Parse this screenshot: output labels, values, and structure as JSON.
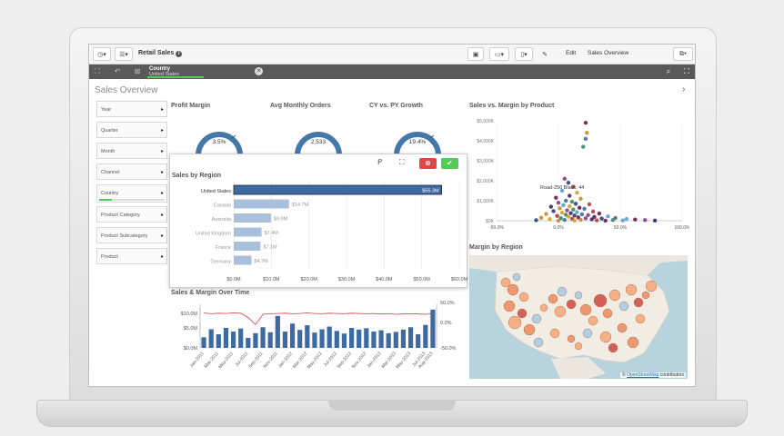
{
  "toolbar": {
    "app_title": "Retail Sales",
    "edit_label": "Edit",
    "sheet_label": "Sales Overview"
  },
  "selection": {
    "field": "Country",
    "value": "United States"
  },
  "sheet": {
    "title": "Sales Overview"
  },
  "filters": [
    {
      "label": "Year"
    },
    {
      "label": "Quarter"
    },
    {
      "label": "Month"
    },
    {
      "label": "Channel"
    },
    {
      "label": "Country",
      "selected_fraction": 0.2
    },
    {
      "label": "Product Category"
    },
    {
      "label": "Product Subcategory"
    },
    {
      "label": "Product"
    }
  ],
  "kpis": [
    {
      "title": "Profit Margin",
      "value": "3.5%"
    },
    {
      "title": "Avg Monthly Orders",
      "value": "2,533"
    },
    {
      "title": "CY vs. PY Growth",
      "value": "19.4%"
    }
  ],
  "colors": {
    "accent": "#4477aa",
    "bar": "#a9bfdc",
    "selected_bar": "#3d6aa3",
    "green": "#52cc52",
    "red": "#e04646",
    "line": "#c9404a"
  },
  "sales_by_region": {
    "title": "Sales by Region",
    "chart_data": {
      "type": "bar",
      "orientation": "horizontal",
      "categories": [
        "United States",
        "Canada",
        "Australia",
        "United Kingdom",
        "France",
        "Germany"
      ],
      "values": [
        55.3,
        14.7,
        9.9,
        7.4,
        7.1,
        4.7
      ],
      "labels": [
        "$55.3M",
        "$14.7M",
        "$9.9M",
        "$7.4M",
        "$7.1M",
        "$4.7M"
      ],
      "ticks": [
        "$0.0M",
        "$10.0M",
        "$20.0M",
        "$30.0M",
        "$40.0M",
        "$50.0M",
        "$60.0M"
      ],
      "xlim": [
        0,
        60
      ],
      "selected": "United States"
    }
  },
  "sales_margin_time": {
    "title": "Sales & Margin Over Time",
    "chart_data": {
      "type": "bar",
      "categories": [
        "Jan-2011",
        "Feb-2011",
        "Mar-2011",
        "Apr-2011",
        "May-2011",
        "Jun-2011",
        "Jul-2011",
        "Aug-2011",
        "Sep-2011",
        "Oct-2011",
        "Nov-2011",
        "Dec-2011",
        "Jan-2012",
        "Feb-2012",
        "Mar-2012",
        "Apr-2012",
        "May-2012",
        "Jun-2012",
        "Jul-2012",
        "Aug-2012",
        "Sep-2012",
        "Oct-2012",
        "Nov-2012",
        "Dec-2012",
        "Jan-2013",
        "Feb-2013",
        "Mar-2013",
        "Apr-2013",
        "May-2013",
        "Jun-2013",
        "Jul-2013",
        "Aug-2013"
      ],
      "tick_labels": [
        "Jan-2011",
        "Mar-2011",
        "May-2011",
        "Jul-2011",
        "Sep-2011",
        "Nov-2011",
        "Jan-2012",
        "Mar-2012",
        "May-2012",
        "Jul-2012",
        "Sep-2012",
        "Nov-2012",
        "Jan-2013",
        "Mar-2013",
        "May-2013",
        "Jul-2013",
        "Aug-2013"
      ],
      "series": [
        {
          "values": [
            3.2,
            5.6,
            4.1,
            6.0,
            4.9,
            5.8,
            3.0,
            4.4,
            6.2,
            4.7,
            9.6,
            4.9,
            7.3,
            5.4,
            6.8,
            4.6,
            5.6,
            6.4,
            5.1,
            4.3,
            6.0,
            5.5,
            5.9,
            4.9,
            5.3,
            4.4,
            4.8,
            5.5,
            6.2,
            4.1,
            6.9,
            11.5
          ]
        },
        {
          "values": [
            1.5,
            1.2,
            1.4,
            1.3,
            1.5,
            1.4,
            -0.2,
            -2.8,
            1.0,
            1.2,
            1.3,
            1.4,
            1.2,
            1.3,
            1.5,
            1.3,
            1.2,
            1.4,
            1.3,
            1.2,
            1.4,
            1.3,
            1.2,
            1.3,
            1.1,
            1.2,
            1.0,
            1.1,
            1.2,
            1.1,
            1.0,
            1.2
          ]
        }
      ],
      "y_ticks": [
        "$10.0M",
        "$5.0M",
        "$0.0M"
      ],
      "y2_ticks": [
        "50.0%",
        "0.0%",
        "-50.0%"
      ],
      "ylim": [
        0,
        12
      ]
    }
  },
  "sales_vs_margin": {
    "title": "Sales vs. Margin by Product",
    "chart_data": {
      "type": "scatter",
      "y_ticks": [
        "$5,000K",
        "$4,000K",
        "$3,000K",
        "$2,000K",
        "$1,000K",
        "$0K"
      ],
      "x_ticks": [
        "-50.0%",
        "0.0%",
        "50.0%",
        "100.0%"
      ],
      "xlim": [
        -50,
        100
      ],
      "ylim": [
        0,
        5000
      ],
      "annotation": "Road-250 Black, 44",
      "points": [
        {
          "x": 22,
          "y": 4900
        },
        {
          "x": 23,
          "y": 4400
        },
        {
          "x": 22,
          "y": 4100
        },
        {
          "x": 20,
          "y": 3700
        },
        {
          "x": 5,
          "y": 2100
        },
        {
          "x": 8,
          "y": 1900
        },
        {
          "x": 12,
          "y": 1700
        },
        {
          "x": 3,
          "y": 1500
        },
        {
          "x": 15,
          "y": 1400
        },
        {
          "x": 9,
          "y": 1250
        },
        {
          "x": -2,
          "y": 1150
        },
        {
          "x": 18,
          "y": 1100
        },
        {
          "x": 6,
          "y": 1000
        },
        {
          "x": 11,
          "y": 950
        },
        {
          "x": 0,
          "y": 900
        },
        {
          "x": 14,
          "y": 850
        },
        {
          "x": 25,
          "y": 820
        },
        {
          "x": 4,
          "y": 780
        },
        {
          "x": 9,
          "y": 720
        },
        {
          "x": -6,
          "y": 700
        },
        {
          "x": 17,
          "y": 650
        },
        {
          "x": 1,
          "y": 620
        },
        {
          "x": 21,
          "y": 600
        },
        {
          "x": 12,
          "y": 560
        },
        {
          "x": 7,
          "y": 520
        },
        {
          "x": -4,
          "y": 480
        },
        {
          "x": 28,
          "y": 460
        },
        {
          "x": 15,
          "y": 430
        },
        {
          "x": 3,
          "y": 400
        },
        {
          "x": 10,
          "y": 380
        },
        {
          "x": 33,
          "y": 360
        },
        {
          "x": -10,
          "y": 340
        },
        {
          "x": 19,
          "y": 320
        },
        {
          "x": 6,
          "y": 300
        },
        {
          "x": 24,
          "y": 280
        },
        {
          "x": 13,
          "y": 260
        },
        {
          "x": -1,
          "y": 240
        },
        {
          "x": 40,
          "y": 220
        },
        {
          "x": 8,
          "y": 200
        },
        {
          "x": 29,
          "y": 190
        },
        {
          "x": 16,
          "y": 170
        },
        {
          "x": -14,
          "y": 150
        },
        {
          "x": 46,
          "y": 140
        },
        {
          "x": 2,
          "y": 130
        },
        {
          "x": 22,
          "y": 120
        },
        {
          "x": 35,
          "y": 110
        },
        {
          "x": 11,
          "y": 100
        },
        {
          "x": 55,
          "y": 90
        },
        {
          "x": -7,
          "y": 80
        },
        {
          "x": 27,
          "y": 70
        },
        {
          "x": 62,
          "y": 60
        },
        {
          "x": 18,
          "y": 50
        },
        {
          "x": 5,
          "y": 40
        },
        {
          "x": 44,
          "y": 35
        },
        {
          "x": 70,
          "y": 30
        },
        {
          "x": -18,
          "y": 25
        },
        {
          "x": 31,
          "y": 20
        },
        {
          "x": 52,
          "y": 15
        },
        {
          "x": 13,
          "y": 10
        },
        {
          "x": 78,
          "y": 8
        },
        {
          "x": 38,
          "y": 5
        },
        {
          "x": 0,
          "y": 3
        }
      ]
    }
  },
  "margin_by_region": {
    "title": "Margin by Region",
    "credit_prefix": "©",
    "credit_link": "OpenStreetMap",
    "credit_suffix": "contributors"
  }
}
